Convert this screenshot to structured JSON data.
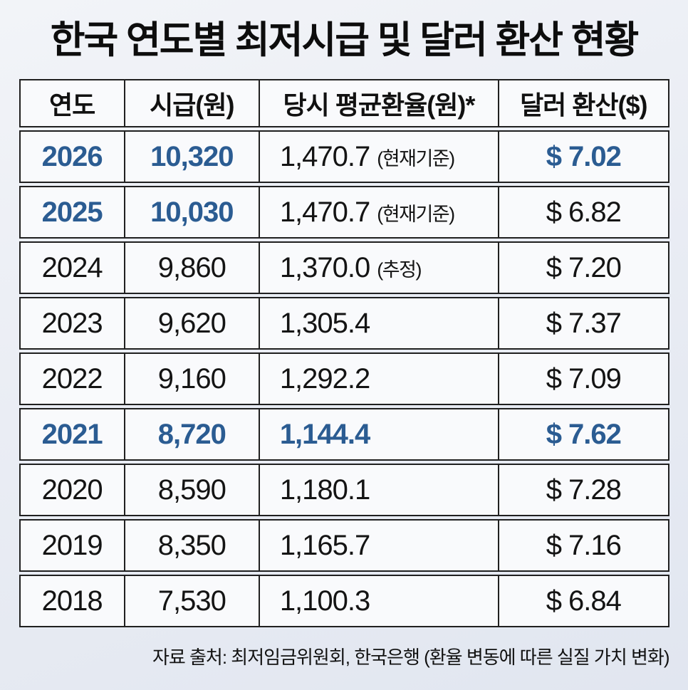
{
  "title": "한국 연도별 최저시급 및 달러 환산 현황",
  "footer": "자료 출처: 최저임금위원회, 한국은행 (환율 변동에 따른 실질 가치 변화)",
  "colors": {
    "highlight_blue": "#2b5c92",
    "text_black": "#141414",
    "border": "#202020",
    "cell_bg": "#f9fafc",
    "page_bg": "#e9edf4"
  },
  "table": {
    "headers": [
      "연도",
      "시급(원)",
      "당시 평균환율(원)*",
      "달러 환산($)"
    ],
    "rows": [
      {
        "year": "2026",
        "wage": "10,320",
        "rate": "1,470.7",
        "rate_note": "(현재기준)",
        "usd": "$ 7.02",
        "hl": {
          "year": true,
          "wage": true,
          "rate": false,
          "usd": true
        }
      },
      {
        "year": "2025",
        "wage": "10,030",
        "rate": "1,470.7",
        "rate_note": "(현재기준)",
        "usd": "$ 6.82",
        "hl": {
          "year": true,
          "wage": true,
          "rate": false,
          "usd": false
        }
      },
      {
        "year": "2024",
        "wage": "9,860",
        "rate": "1,370.0",
        "rate_note": "(추정)",
        "usd": "$ 7.20",
        "hl": {
          "year": false,
          "wage": false,
          "rate": false,
          "usd": false
        }
      },
      {
        "year": "2023",
        "wage": "9,620",
        "rate": "1,305.4",
        "rate_note": "",
        "usd": "$ 7.37",
        "hl": {
          "year": false,
          "wage": false,
          "rate": false,
          "usd": false
        }
      },
      {
        "year": "2022",
        "wage": "9,160",
        "rate": "1,292.2",
        "rate_note": "",
        "usd": "$ 7.09",
        "hl": {
          "year": false,
          "wage": false,
          "rate": false,
          "usd": false
        }
      },
      {
        "year": "2021",
        "wage": "8,720",
        "rate": "1,144.4",
        "rate_note": "",
        "usd": "$ 7.62",
        "hl": {
          "year": true,
          "wage": true,
          "rate": true,
          "usd": true
        }
      },
      {
        "year": "2020",
        "wage": "8,590",
        "rate": "1,180.1",
        "rate_note": "",
        "usd": "$ 7.28",
        "hl": {
          "year": false,
          "wage": false,
          "rate": false,
          "usd": false
        }
      },
      {
        "year": "2019",
        "wage": "8,350",
        "rate": "1,165.7",
        "rate_note": "",
        "usd": "$ 7.16",
        "hl": {
          "year": false,
          "wage": false,
          "rate": false,
          "usd": false
        }
      },
      {
        "year": "2018",
        "wage": "7,530",
        "rate": "1,100.3",
        "rate_note": "",
        "usd": "$ 6.84",
        "hl": {
          "year": false,
          "wage": false,
          "rate": false,
          "usd": false
        }
      }
    ]
  },
  "chart_data": {
    "type": "table",
    "title": "한국 연도별 최저시급 및 달러 환산 현황",
    "columns": [
      "연도",
      "시급(원)",
      "당시 평균환율(원)*",
      "달러 환산($)"
    ],
    "rows": [
      [
        2026,
        10320,
        1470.7,
        7.02
      ],
      [
        2025,
        10030,
        1470.7,
        6.82
      ],
      [
        2024,
        9860,
        1370.0,
        7.2
      ],
      [
        2023,
        9620,
        1305.4,
        7.37
      ],
      [
        2022,
        9160,
        1292.2,
        7.09
      ],
      [
        2021,
        8720,
        1144.4,
        7.62
      ],
      [
        2020,
        8590,
        1180.1,
        7.28
      ],
      [
        2019,
        8350,
        1165.7,
        7.16
      ],
      [
        2018,
        7530,
        1100.3,
        6.84
      ]
    ],
    "annotations": {
      "2026": "현재기준",
      "2025": "현재기준",
      "2024": "추정"
    },
    "highlighted_years": [
      2026,
      2025,
      2021
    ],
    "source": "자료 출처: 최저임금위원회, 한국은행 (환율 변동에 따른 실질 가치 변화)"
  }
}
